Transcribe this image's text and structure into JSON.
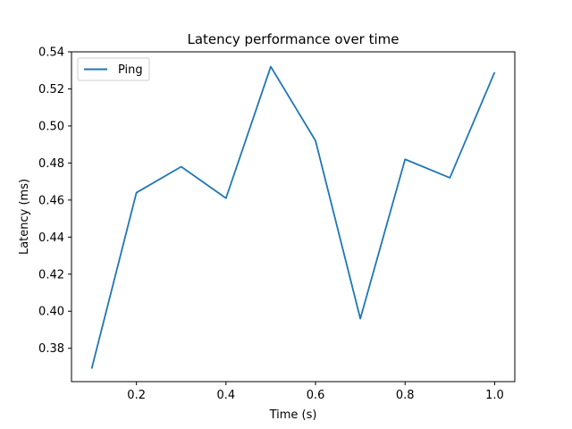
{
  "chart_data": {
    "type": "line",
    "title": "Latency performance over time",
    "xlabel": "Time (s)",
    "ylabel": "Latency (ms)",
    "xlim": [
      0.055,
      1.045
    ],
    "ylim": [
      0.362,
      0.54
    ],
    "x_ticks": [
      0.2,
      0.4,
      0.6,
      0.8,
      1.0
    ],
    "x_tick_labels": [
      "0.2",
      "0.4",
      "0.6",
      "0.8",
      "1.0"
    ],
    "y_ticks": [
      0.38,
      0.4,
      0.42,
      0.44,
      0.46,
      0.48,
      0.5,
      0.52,
      0.54
    ],
    "y_tick_labels": [
      "0.38",
      "0.40",
      "0.42",
      "0.44",
      "0.46",
      "0.48",
      "0.50",
      "0.52",
      "0.54"
    ],
    "grid": false,
    "legend_position": "top-left",
    "series": [
      {
        "name": "Ping",
        "color": "#1f77b4",
        "x": [
          0.1,
          0.2,
          0.3,
          0.4,
          0.5,
          0.6,
          0.7,
          0.8,
          0.9,
          1.0
        ],
        "y": [
          0.369,
          0.464,
          0.478,
          0.461,
          0.532,
          0.492,
          0.396,
          0.482,
          0.472,
          0.529
        ]
      }
    ]
  }
}
